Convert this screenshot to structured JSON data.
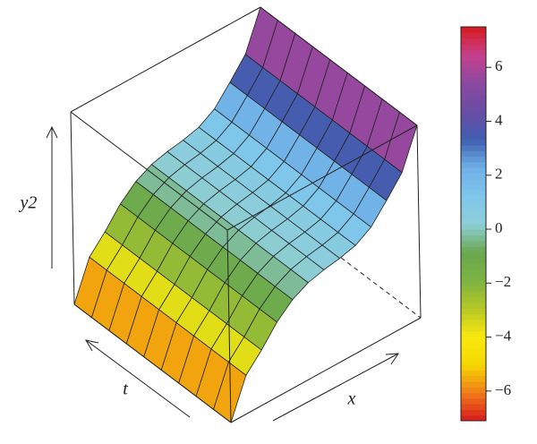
{
  "chart_data": {
    "type": "surface",
    "ylabel": "y2",
    "tlabel": "t",
    "xlabel": "x",
    "x": [
      0,
      1,
      2,
      3,
      4,
      5,
      6,
      7,
      8,
      9,
      10,
      11,
      12
    ],
    "t": [
      0,
      1,
      2,
      3,
      4,
      5,
      6,
      7,
      8,
      9
    ],
    "z": [
      -7,
      -4.2,
      -3,
      -1.6,
      -0.6,
      0,
      0.3,
      0.5,
      0.8,
      1.5,
      2.8,
      4.2,
      7
    ],
    "xlim": [
      0,
      12
    ],
    "tlim": [
      0,
      9
    ],
    "zlim": [
      -7,
      7
    ],
    "clim": [
      -7.1,
      7.5
    ],
    "colormap": [
      "#d7191c",
      "#f07c1a",
      "#f5d800",
      "#f9e80f",
      "#b5c825",
      "#7cb342",
      "#6aa84f",
      "#8ecfd8",
      "#7ec6ec",
      "#6fb0e6",
      "#3f5fb0",
      "#6a4ca3",
      "#8a4aa0",
      "#c6408e",
      "#d7191c"
    ],
    "cticks": [
      {
        "value": -6,
        "label": "−6"
      },
      {
        "value": -4,
        "label": "−4"
      },
      {
        "value": -2,
        "label": "−2"
      },
      0,
      2,
      4,
      6
    ]
  }
}
